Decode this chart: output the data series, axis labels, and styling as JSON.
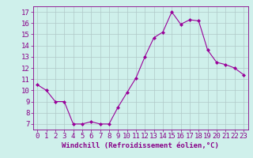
{
  "x": [
    0,
    1,
    2,
    3,
    4,
    5,
    6,
    7,
    8,
    9,
    10,
    11,
    12,
    13,
    14,
    15,
    16,
    17,
    18,
    19,
    20,
    21,
    22,
    23
  ],
  "y": [
    10.5,
    10.0,
    9.0,
    9.0,
    7.0,
    7.0,
    7.2,
    7.0,
    7.0,
    8.5,
    9.8,
    11.1,
    13.0,
    14.7,
    15.2,
    17.0,
    15.9,
    16.3,
    16.2,
    13.6,
    12.5,
    12.3,
    12.0,
    11.4
  ],
  "line_color": "#990099",
  "marker": "D",
  "marker_size": 2,
  "bg_color": "#cff0eb",
  "grid_color": "#b0c8c8",
  "xlabel": "Windchill (Refroidissement éolien,°C)",
  "ylim": [
    6.5,
    17.5
  ],
  "xlim": [
    -0.5,
    23.5
  ],
  "yticks": [
    7,
    8,
    9,
    10,
    11,
    12,
    13,
    14,
    15,
    16,
    17
  ],
  "xticks": [
    0,
    1,
    2,
    3,
    4,
    5,
    6,
    7,
    8,
    9,
    10,
    11,
    12,
    13,
    14,
    15,
    16,
    17,
    18,
    19,
    20,
    21,
    22,
    23
  ],
  "tick_color": "#880088",
  "label_color": "#880088",
  "label_fontsize": 6.5,
  "tick_fontsize": 6.5
}
